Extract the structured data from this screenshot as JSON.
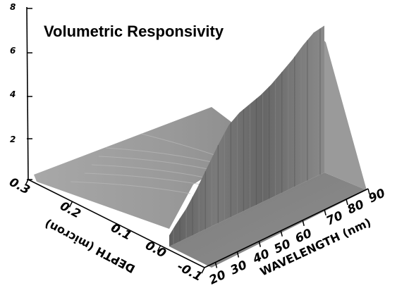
{
  "chart_data": {
    "type": "surface",
    "title": "Volumetric Responsivity",
    "xlabel": "WAVELENGTH (nm)",
    "ylabel": "DEPTH (micron)",
    "zlabel": "",
    "xlim": [
      15,
      90
    ],
    "ylim": [
      -0.1,
      0.3
    ],
    "zlim": [
      0,
      8
    ],
    "x_ticks": [
      "20",
      "30",
      "40",
      "50",
      "60",
      "70",
      "80",
      "90"
    ],
    "y_ticks": [
      "-0.1",
      "0.0",
      "0.1",
      "0.2",
      "0.3"
    ],
    "z_ticks": [
      "2",
      "4",
      "6",
      "8"
    ],
    "series": [
      {
        "depth": 0.0,
        "x": [
          17,
          20,
          25,
          30,
          35,
          40,
          45,
          50,
          55,
          60,
          65,
          70,
          75,
          80,
          85,
          90
        ],
        "values": [
          0.6,
          1.0,
          1.6,
          2.4,
          3.3,
          4.2,
          5.0,
          5.4,
          5.6,
          5.8,
          6.1,
          6.5,
          6.9,
          7.4,
          7.8,
          7.9
        ]
      },
      {
        "depth": 0.3,
        "x": [
          17,
          90
        ],
        "values": [
          0.3,
          0.3
        ]
      }
    ]
  }
}
